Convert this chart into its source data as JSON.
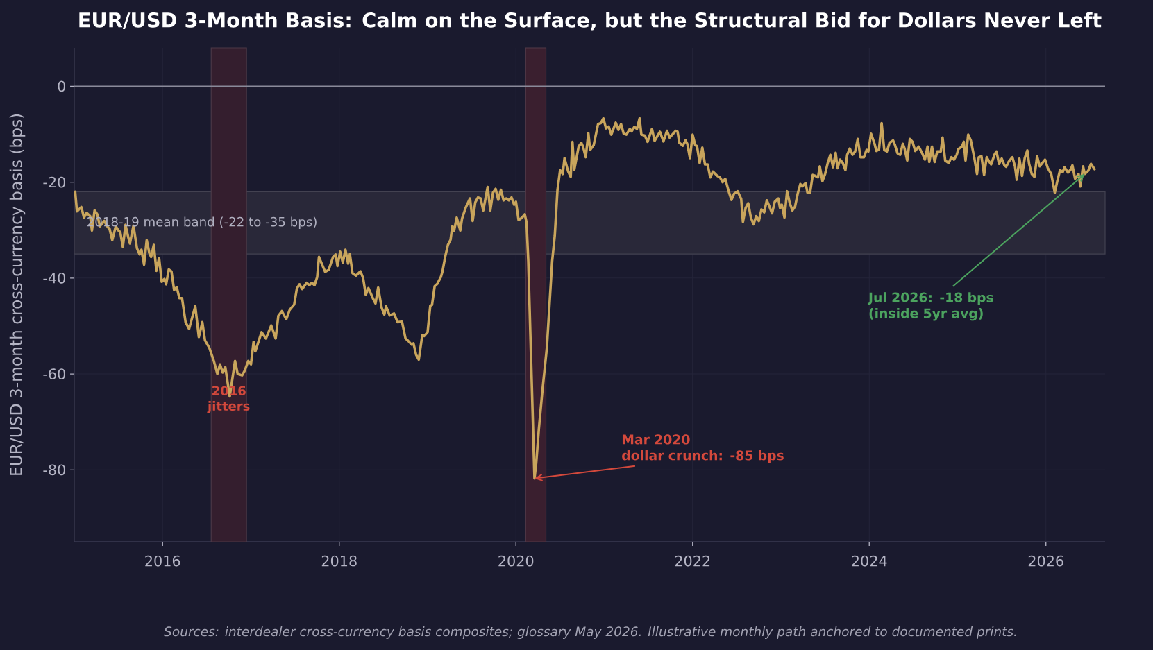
{
  "chart_data": {
    "type": "line",
    "title": "EUR/USD 3-Month Basis: Calm on the Surface, but the Structural Bid for Dollars Never Left",
    "ylabel": "EUR/USD 3-month cross-currency basis (bps)",
    "x": [
      2015.01,
      2015.03,
      2015.08,
      2015.11,
      2015.14,
      2015.18,
      2015.2,
      2015.23,
      2015.26,
      2015.29,
      2015.34,
      2015.38,
      2015.4,
      2015.43,
      2015.47,
      2015.5,
      2015.52,
      2015.55,
      2015.58,
      2015.61,
      2015.63,
      2015.67,
      2015.71,
      2015.74,
      2015.76,
      2015.79,
      2015.82,
      2015.85,
      2015.87,
      2015.9,
      2015.93,
      2015.96,
      2015.99,
      2016.02,
      2016.04,
      2016.07,
      2016.1,
      2016.13,
      2016.16,
      2016.19,
      2016.22,
      2016.26,
      2016.3,
      2016.37,
      2016.41,
      2016.45,
      2016.48,
      2016.53,
      2016.58,
      2016.62,
      2016.65,
      2016.68,
      2016.71,
      2016.76,
      2016.82,
      2016.85,
      2016.9,
      2016.93,
      2016.97,
      2017.0,
      2017.03,
      2017.05,
      2017.12,
      2017.17,
      2017.23,
      2017.28,
      2017.31,
      2017.35,
      2017.4,
      2017.44,
      2017.49,
      2017.52,
      2017.55,
      2017.58,
      2017.63,
      2017.66,
      2017.69,
      2017.72,
      2017.75,
      2017.77,
      2017.84,
      2017.88,
      2017.93,
      2017.96,
      2017.98,
      2018.01,
      2018.04,
      2018.07,
      2018.1,
      2018.12,
      2018.15,
      2018.19,
      2018.24,
      2018.27,
      2018.3,
      2018.33,
      2018.38,
      2018.41,
      2018.44,
      2018.48,
      2018.51,
      2018.53,
      2018.57,
      2018.62,
      2018.66,
      2018.71,
      2018.75,
      2018.78,
      2018.82,
      2018.84,
      2018.87,
      2018.9,
      2018.94,
      2018.96,
      2019.0,
      2019.03,
      2019.05,
      2019.08,
      2019.11,
      2019.15,
      2019.17,
      2019.2,
      2019.23,
      2019.26,
      2019.28,
      2019.3,
      2019.33,
      2019.37,
      2019.39,
      2019.43,
      2019.48,
      2019.51,
      2019.54,
      2019.57,
      2019.6,
      2019.63,
      2019.68,
      2019.71,
      2019.74,
      2019.77,
      2019.8,
      2019.83,
      2019.86,
      2019.89,
      2019.92,
      2019.95,
      2019.98,
      2020.0,
      2020.03,
      2020.07,
      2020.1,
      2020.12,
      2020.14,
      2020.21,
      2020.23,
      2020.26,
      2020.3,
      2020.35,
      2020.41,
      2020.44,
      2020.47,
      2020.5,
      2020.53,
      2020.55,
      2020.59,
      2020.62,
      2020.64,
      2020.66,
      2020.71,
      2020.74,
      2020.76,
      2020.79,
      2020.82,
      2020.84,
      2020.88,
      2020.93,
      2020.96,
      2020.99,
      2021.02,
      2021.05,
      2021.08,
      2021.13,
      2021.16,
      2021.19,
      2021.22,
      2021.25,
      2021.29,
      2021.31,
      2021.34,
      2021.37,
      2021.4,
      2021.42,
      2021.46,
      2021.49,
      2021.54,
      2021.57,
      2021.63,
      2021.67,
      2021.71,
      2021.74,
      2021.76,
      2021.81,
      2021.83,
      2021.85,
      2021.89,
      2021.92,
      2021.94,
      2021.97,
      2022.0,
      2022.03,
      2022.05,
      2022.08,
      2022.11,
      2022.14,
      2022.17,
      2022.2,
      2022.23,
      2022.28,
      2022.31,
      2022.34,
      2022.37,
      2022.41,
      2022.44,
      2022.47,
      2022.51,
      2022.55,
      2022.57,
      2022.6,
      2022.63,
      2022.66,
      2022.69,
      2022.72,
      2022.75,
      2022.78,
      2022.81,
      2022.84,
      2022.87,
      2022.9,
      2022.93,
      2022.97,
      2022.99,
      2023.01,
      2023.04,
      2023.07,
      2023.1,
      2023.13,
      2023.16,
      2023.19,
      2023.22,
      2023.24,
      2023.28,
      2023.3,
      2023.33,
      2023.36,
      2023.39,
      2023.42,
      2023.44,
      2023.47,
      2023.5,
      2023.53,
      2023.56,
      2023.59,
      2023.62,
      2023.64,
      2023.67,
      2023.7,
      2023.73,
      2023.75,
      2023.78,
      2023.81,
      2023.84,
      2023.87,
      2023.9,
      2023.94,
      2023.97,
      2023.99,
      2024.02,
      2024.06,
      2024.08,
      2024.11,
      2024.14,
      2024.17,
      2024.2,
      2024.23,
      2024.27,
      2024.29,
      2024.32,
      2024.35,
      2024.38,
      2024.4,
      2024.43,
      2024.46,
      2024.49,
      2024.52,
      2024.56,
      2024.6,
      2024.63,
      2024.66,
      2024.68,
      2024.71,
      2024.74,
      2024.77,
      2024.81,
      2024.83,
      2024.86,
      2024.9,
      2024.93,
      2024.96,
      2024.99,
      2025.01,
      2025.05,
      2025.07,
      2025.09,
      2025.12,
      2025.15,
      2025.19,
      2025.22,
      2025.24,
      2025.27,
      2025.3,
      2025.33,
      2025.35,
      2025.38,
      2025.42,
      2025.44,
      2025.47,
      2025.5,
      2025.53,
      2025.55,
      2025.58,
      2025.62,
      2025.65,
      2025.67,
      2025.7,
      2025.73,
      2025.76,
      2025.79,
      2025.81,
      2025.84,
      2025.87,
      2025.9,
      2025.93,
      2025.96,
      2025.99,
      2026.02,
      2026.06,
      2026.08,
      2026.1,
      2026.13,
      2026.16,
      2026.19,
      2026.21,
      2026.25,
      2026.28,
      2026.3,
      2026.33,
      2026.37,
      2026.39,
      2026.42,
      2026.44,
      2026.48,
      2026.51,
      2026.55
    ],
    "series": [
      {
        "color": "#c9a55c",
        "values": [
          -22.0,
          -26.1,
          -25.2,
          -27.4,
          -26.4,
          -27.1,
          -30.1,
          -25.9,
          -26.7,
          -29.2,
          -28.1,
          -29.4,
          -29.8,
          -32.1,
          -29.2,
          -30.1,
          -30.4,
          -33.5,
          -28.9,
          -31.4,
          -32.8,
          -29.1,
          -33.8,
          -35.1,
          -34.1,
          -37.2,
          -32.1,
          -34.8,
          -35.6,
          -33.1,
          -38.5,
          -35.8,
          -40.8,
          -40.2,
          -41.3,
          -38.2,
          -38.6,
          -42.5,
          -41.9,
          -44.2,
          -44.2,
          -49.2,
          -50.6,
          -45.9,
          -52.3,
          -49.2,
          -53.0,
          -54.6,
          -57.3,
          -60.0,
          -58.0,
          -59.7,
          -58.6,
          -64.7,
          -57.3,
          -60.0,
          -60.3,
          -59.3,
          -57.3,
          -58.0,
          -53.3,
          -55.3,
          -51.3,
          -52.6,
          -49.9,
          -52.6,
          -47.9,
          -46.9,
          -48.6,
          -46.6,
          -45.5,
          -42.2,
          -41.3,
          -42.3,
          -41.0,
          -41.5,
          -41.0,
          -41.5,
          -39.8,
          -35.6,
          -38.7,
          -38.3,
          -35.6,
          -35.1,
          -37.5,
          -34.5,
          -36.8,
          -34.1,
          -37.0,
          -35.0,
          -39.0,
          -39.5,
          -38.6,
          -40.0,
          -43.5,
          -42.1,
          -44.2,
          -45.3,
          -42.0,
          -46.2,
          -47.6,
          -45.9,
          -47.8,
          -47.4,
          -49.2,
          -49.1,
          -52.6,
          -53.1,
          -53.9,
          -53.6,
          -56.0,
          -57.0,
          -51.9,
          -52.1,
          -51.3,
          -45.8,
          -45.6,
          -41.7,
          -41.2,
          -39.8,
          -38.5,
          -35.5,
          -33.1,
          -32.0,
          -29.2,
          -30.1,
          -27.4,
          -30.1,
          -27.6,
          -25.4,
          -23.4,
          -28.1,
          -24.2,
          -23.2,
          -23.4,
          -25.9,
          -21.0,
          -25.9,
          -22.2,
          -21.4,
          -23.7,
          -21.6,
          -23.8,
          -23.4,
          -23.8,
          -23.2,
          -24.7,
          -24.1,
          -27.9,
          -27.4,
          -26.7,
          -28.4,
          -36.5,
          -81.8,
          -78.5,
          -71.4,
          -63.4,
          -54.6,
          -36.5,
          -31.1,
          -21.7,
          -17.5,
          -18.3,
          -15.0,
          -17.7,
          -18.9,
          -11.6,
          -17.5,
          -12.6,
          -11.8,
          -12.6,
          -14.8,
          -9.8,
          -13.3,
          -12.3,
          -7.9,
          -7.7,
          -6.7,
          -8.8,
          -8.4,
          -10.1,
          -7.6,
          -9.1,
          -7.9,
          -9.9,
          -10.1,
          -8.9,
          -9.4,
          -8.5,
          -8.9,
          -6.7,
          -10.1,
          -10.3,
          -11.6,
          -8.9,
          -11.4,
          -9.5,
          -11.5,
          -9.3,
          -10.7,
          -10.3,
          -9.3,
          -9.5,
          -11.8,
          -12.4,
          -11.3,
          -12.0,
          -15.0,
          -10.1,
          -12.3,
          -12.5,
          -16.0,
          -12.8,
          -16.3,
          -16.3,
          -19.0,
          -17.8,
          -18.7,
          -19.0,
          -20.0,
          -19.3,
          -22.0,
          -23.7,
          -22.4,
          -21.9,
          -23.5,
          -28.3,
          -25.4,
          -24.4,
          -27.4,
          -28.8,
          -27.1,
          -28.1,
          -25.7,
          -26.3,
          -23.8,
          -25.1,
          -26.5,
          -24.1,
          -23.4,
          -25.4,
          -24.7,
          -27.4,
          -21.9,
          -24.4,
          -25.9,
          -25.1,
          -22.4,
          -20.4,
          -20.9,
          -20.2,
          -22.2,
          -22.2,
          -18.5,
          -18.7,
          -19.0,
          -16.7,
          -19.8,
          -18.3,
          -16.0,
          -14.3,
          -16.9,
          -13.9,
          -17.1,
          -15.3,
          -16.0,
          -17.5,
          -14.3,
          -13.0,
          -14.3,
          -13.6,
          -11.0,
          -14.8,
          -14.8,
          -13.3,
          -13.6,
          -9.9,
          -12.0,
          -13.5,
          -13.2,
          -7.7,
          -13.3,
          -13.6,
          -11.8,
          -11.3,
          -12.2,
          -14.0,
          -14.3,
          -12.0,
          -13.0,
          -15.5,
          -11.0,
          -11.6,
          -13.5,
          -12.6,
          -14.0,
          -15.3,
          -12.6,
          -15.8,
          -12.6,
          -15.8,
          -13.6,
          -13.6,
          -10.7,
          -15.5,
          -16.0,
          -14.8,
          -15.3,
          -14.3,
          -13.1,
          -12.6,
          -11.6,
          -15.5,
          -10.1,
          -11.3,
          -15.0,
          -18.3,
          -14.8,
          -14.6,
          -18.5,
          -14.8,
          -15.5,
          -16.3,
          -14.2,
          -13.6,
          -16.2,
          -15.1,
          -16.5,
          -16.8,
          -15.7,
          -14.8,
          -16.7,
          -19.5,
          -15.1,
          -18.7,
          -15.0,
          -13.4,
          -16.2,
          -18.3,
          -18.9,
          -14.6,
          -16.7,
          -16.0,
          -15.3,
          -17.0,
          -18.3,
          -20.2,
          -22.2,
          -19.7,
          -17.5,
          -17.9,
          -16.9,
          -18.0,
          -17.4,
          -16.5,
          -19.3,
          -18.3,
          -20.9,
          -16.7,
          -18.3,
          -17.6,
          -16.2,
          -17.3
        ]
      }
    ],
    "xlim": [
      2015.0,
      2026.67
    ],
    "ylim": [
      -95,
      8
    ],
    "xticks": [
      2016,
      2018,
      2020,
      2022,
      2024,
      2026
    ],
    "yticks": [
      -80,
      -60,
      -40,
      -20,
      0
    ],
    "grid": true,
    "marker": "none",
    "line_style": "solid",
    "ref_lines": [
      {
        "axis": "y",
        "value": 0,
        "color": "#8a8a9a"
      }
    ],
    "bands": [
      {
        "axis": "y",
        "from": -22,
        "to": -35,
        "label": "2018-19 mean band (-22 to -35 bps)",
        "color": "#292839"
      },
      {
        "axis": "x",
        "from": 2016.55,
        "to": 2016.95,
        "label": "2016\njitters",
        "color": "#341e2e"
      },
      {
        "axis": "x",
        "from": 2020.11,
        "to": 2020.34,
        "color": "#3a1f2f"
      }
    ],
    "annotations": [
      {
        "text": "Mar 2020\ndollar crunch: -85 bps",
        "x": 2020.21,
        "y": -81.8
      },
      {
        "text": "Jul 2026: -18 bps\n(inside 5yr avg)",
        "x": 2026.44,
        "y": -18.3
      },
      "Sources: interdealer cross-currency basis composites; glossary May 2026. Illustrative monthly path anchored to documented prints."
    ]
  }
}
